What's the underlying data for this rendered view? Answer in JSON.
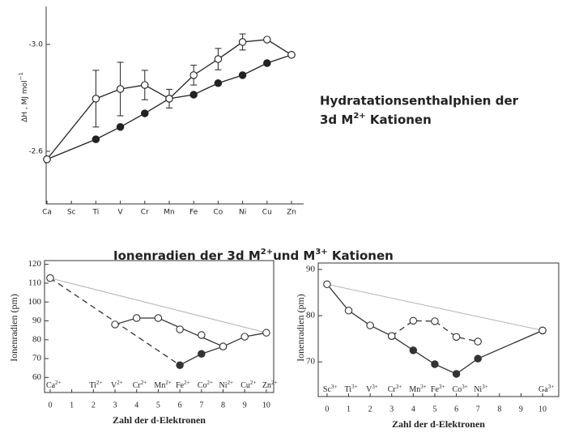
{
  "chart_data": [
    {
      "type": "line",
      "frame": "left-bottom",
      "font": "sans",
      "ylabel": "ΔH , MJ mol",
      "ylabel_sup": "−1",
      "categories": [
        "Ca",
        "Sc",
        "Ti",
        "V",
        "Cr",
        "Mn",
        "Fe",
        "Co",
        "Ni",
        "Cu",
        "Zn"
      ],
      "ylim": [
        -2.403,
        -3.142
      ],
      "yticks": [
        {
          "value": -3,
          "label": "-3.0"
        },
        -2.6
      ],
      "series": [
        {
          "color": "#222",
          "line": "solid",
          "marker": "filled",
          "x": [
            "Ca",
            "Ti",
            "V",
            "Cr",
            "Mn",
            "Fe",
            "Co",
            "Ni",
            "Cu",
            "Zn"
          ],
          "values": [
            -2.57,
            -2.645,
            -2.691,
            -2.742,
            -2.797,
            -2.812,
            -2.855,
            -2.885,
            -2.93,
            -2.961
          ]
        },
        {
          "color": "#222",
          "line": "solid",
          "marker": "open",
          "x": [
            "Ca",
            "Ti",
            "V",
            "Cr",
            "Mn",
            "Fe",
            "Co",
            "Ni",
            "Cu",
            "Zn"
          ],
          "values": [
            -2.57,
            -2.797,
            -2.833,
            -2.848,
            -2.797,
            -2.885,
            -2.945,
            -3.009,
            -3.018,
            -2.961
          ],
          "errors": [
            null,
            0.106,
            0.1,
            0.055,
            0.035,
            0.037,
            0.04,
            0.03,
            null,
            null
          ]
        }
      ]
    },
    {
      "type": "line",
      "frame": "box",
      "font": "serif",
      "ylabel": "Ionenradien (pm)",
      "xlabel": "Zahl der d-Elektronen",
      "xlim": [
        -0.26,
        10.34
      ],
      "xticks": [
        0,
        1,
        2,
        3,
        4,
        5,
        6,
        7,
        8,
        9,
        10
      ],
      "ylim": [
        52,
        122
      ],
      "yticks": [
        120,
        110,
        100,
        90,
        80,
        70,
        60
      ],
      "ion_labels": [
        {
          "x": 0,
          "text": "Ca",
          "charge": "2+"
        },
        {
          "x": 2,
          "text": "Ti",
          "charge": "2+"
        },
        {
          "x": 3,
          "text": "V",
          "charge": "2+"
        },
        {
          "x": 4,
          "text": "Cr",
          "charge": "2+"
        },
        {
          "x": 5,
          "text": "Mn",
          "charge": "2+"
        },
        {
          "x": 6,
          "text": "Fe",
          "charge": "2+"
        },
        {
          "x": 7,
          "text": "Co",
          "charge": "2+"
        },
        {
          "x": 8,
          "text": "Ni",
          "charge": "2+"
        },
        {
          "x": 9,
          "text": "Cu",
          "charge": "2+"
        },
        {
          "x": 10,
          "text": "Zn",
          "charge": "2+"
        }
      ],
      "series": [
        {
          "color": "#aaa",
          "line": "thin",
          "marker": "none",
          "x": [
            0,
            10
          ],
          "values": [
            112.7,
            83.7
          ]
        },
        {
          "color": "#333",
          "line": "dashed",
          "marker": "none",
          "x": [
            0,
            6
          ],
          "values": [
            112.7,
            66.5
          ]
        },
        {
          "color": "#333",
          "line": "solid",
          "marker": "filled",
          "x": [
            6,
            7,
            8
          ],
          "values": [
            66.5,
            72.5,
            76.4
          ]
        },
        {
          "color": "#333",
          "line": "solid",
          "marker": "open",
          "x": [
            3,
            4,
            5,
            8,
            9,
            10
          ],
          "values": [
            88.1,
            91.5,
            91.5,
            76.4,
            81.6,
            83.7
          ]
        },
        {
          "color": "#333",
          "line": "none",
          "marker": "open",
          "x": [
            0,
            6,
            7
          ],
          "values": [
            112.7,
            85.5,
            82.5
          ]
        }
      ]
    },
    {
      "type": "line",
      "frame": "box",
      "font": "serif",
      "ylabel": "Ionenradien (pm)",
      "xlabel": "Zahl der d-Elektronen",
      "xlim": [
        -0.41,
        10.75
      ],
      "xticks": [
        0,
        1,
        2,
        3,
        4,
        5,
        6,
        7,
        8,
        9,
        10
      ],
      "ylim": [
        62.5,
        91.4
      ],
      "yticks": [
        90,
        80,
        70
      ],
      "ion_labels": [
        {
          "x": 0,
          "text": "Sc",
          "charge": "3+"
        },
        {
          "x": 1,
          "text": "Ti",
          "charge": "3+"
        },
        {
          "x": 2,
          "text": "V",
          "charge": "3+"
        },
        {
          "x": 3,
          "text": "Cr",
          "charge": "3+"
        },
        {
          "x": 4,
          "text": "Mn",
          "charge": "3+"
        },
        {
          "x": 5,
          "text": "Fe",
          "charge": "3+"
        },
        {
          "x": 6,
          "text": "Co",
          "charge": "3+"
        },
        {
          "x": 7,
          "text": "Ni",
          "charge": "3+"
        },
        {
          "x": 10,
          "text": "Ga",
          "charge": "3+"
        }
      ],
      "series": [
        {
          "color": "#aaa",
          "line": "thin",
          "marker": "none",
          "x": [
            0,
            10
          ],
          "values": [
            86.8,
            76.8
          ]
        },
        {
          "color": "#333",
          "line": "solid",
          "marker": "filled",
          "x": [
            3,
            4,
            5,
            6,
            7,
            10
          ],
          "values": [
            75.6,
            72.5,
            69.5,
            67.4,
            70.7,
            76.8
          ]
        },
        {
          "color": "#333",
          "line": "dashed",
          "marker": "open",
          "x": [
            3,
            4,
            5,
            6,
            7
          ],
          "values": [
            75.6,
            78.9,
            78.8,
            75.4,
            74.4
          ]
        },
        {
          "color": "#333",
          "line": "solid",
          "marker": "open",
          "x": [
            0,
            1,
            2,
            3
          ],
          "values": [
            86.8,
            81.1,
            77.9,
            75.6
          ]
        },
        {
          "color": "#333",
          "line": "none",
          "marker": "open",
          "x": [
            10
          ],
          "values": [
            76.8
          ]
        }
      ]
    }
  ],
  "hydration_caption": {
    "line1": "Hydratationsenthalphien der",
    "line2": "3d M",
    "line2_sup": "2+",
    "line2_end": " Kationen"
  },
  "radii_title": {
    "a": "Ionenradien der 3d M",
    "a_sup": "2+",
    "b": "und M",
    "b_sup": "3+",
    "c": " Kationen"
  }
}
